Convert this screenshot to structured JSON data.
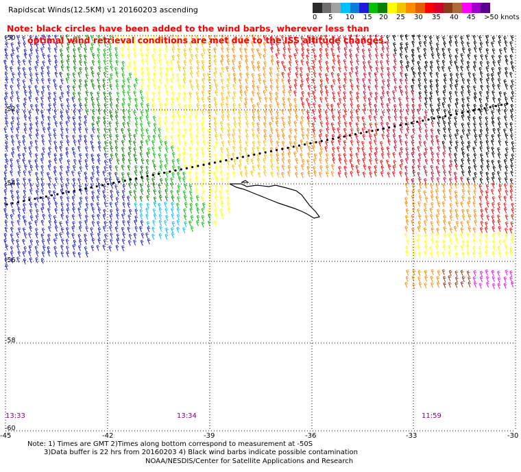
{
  "title": "Rapidscat Winds(12.5KM) v1 20160203 ascending",
  "note_line1": "Note: black circles have been added to the wind barbs, wherever less than",
  "note_line2": "optimal wind retrieval conditions are met due to the ISS altitude changes.",
  "colorbar": {
    "colors": [
      "#2b2b2b",
      "#6e6e6e",
      "#a0a0a0",
      "#00bfff",
      "#0a7dd8",
      "#1a1ad8",
      "#00c000",
      "#0a8000",
      "#ffff00",
      "#f2c400",
      "#ff8a00",
      "#e06000",
      "#ff0000",
      "#d0002a",
      "#8a3a1a",
      "#b06a3a",
      "#ff00ff",
      "#a000c8",
      "#5a0090"
    ],
    "labels": [
      "0",
      "5",
      "10",
      "15",
      "20",
      "25",
      "30",
      "35",
      "40",
      "45",
      ">50 knots"
    ]
  },
  "lat_labels": [
    "-50",
    "-52",
    "-54",
    "-56",
    "-58",
    "-60"
  ],
  "lon_labels": [
    "-45",
    "-42",
    "-39",
    "-36",
    "-33",
    "-30"
  ],
  "time_labels": [
    "13:33",
    "13:34",
    "11:59"
  ],
  "footer": {
    "line1": "Note: 1) Times are GMT 2)Times along bottom correspond to measurement at -50S",
    "line2": "3)Data buffer is 22 hrs from 20160203 4) Black wind barbs indicate possible contamination",
    "line3": "NOAA/NESDIS/Center for Satellite Applications and Research"
  }
}
